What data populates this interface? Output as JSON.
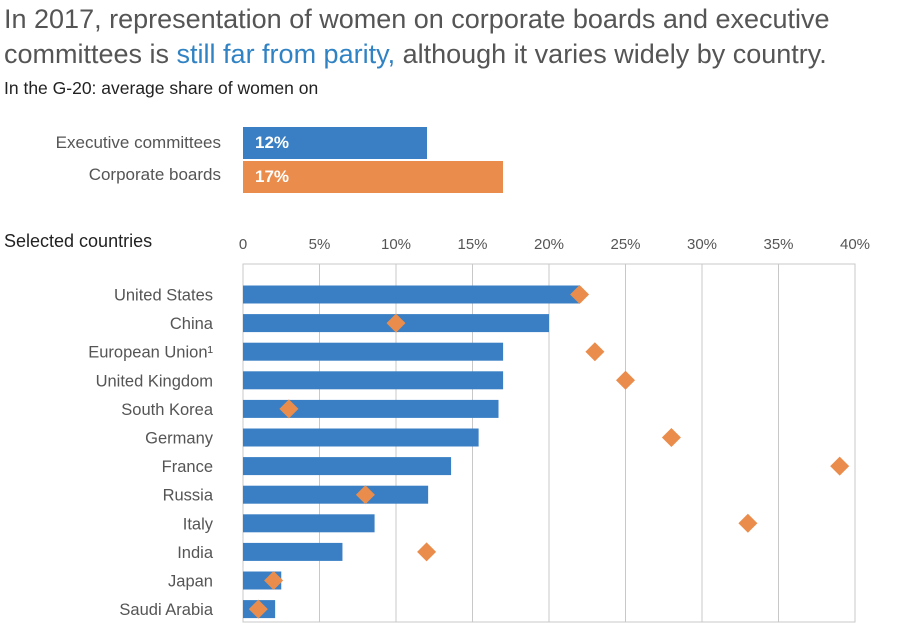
{
  "header": {
    "headline_pre": "In 2017, representation of women on corporate boards and executive committees is ",
    "headline_highlight": "still far from parity,",
    "headline_post": " although it varies widely by country.",
    "subtitle": "In the G-20: average share of women on"
  },
  "colors": {
    "exec": "#3a7fc4",
    "board": "#ea8d4c",
    "highlight": "#2f82c3",
    "grid": "#c8c8c8"
  },
  "summary": [
    {
      "label": "Executive committees",
      "value": 12,
      "value_label": "12%",
      "color": "#3a7fc4"
    },
    {
      "label": "Corporate boards",
      "value": 17,
      "value_label": "17%",
      "color": "#ea8d4c"
    }
  ],
  "section_label": "Selected countries",
  "chart_data": {
    "type": "bar",
    "orientation": "horizontal",
    "xlim": [
      0,
      40
    ],
    "xticks": [
      "0",
      "5%",
      "10%",
      "15%",
      "20%",
      "25%",
      "30%",
      "35%",
      "40%"
    ],
    "grid": true,
    "categories": [
      "United States",
      "China",
      "European Union¹",
      "United Kingdom",
      "South Korea",
      "Germany",
      "France",
      "Russia",
      "Italy",
      "India",
      "Japan",
      "Saudi Arabia"
    ],
    "series": [
      {
        "mark": "bar",
        "color": "#3a7fc4",
        "values": [
          22,
          20,
          17,
          17,
          16.7,
          15.4,
          13.6,
          12.1,
          8.6,
          6.5,
          2.5,
          2.1
        ]
      },
      {
        "mark": "diamond",
        "color": "#ea8d4c",
        "values": [
          22,
          10,
          23,
          25,
          3,
          28,
          39,
          8,
          33,
          12,
          2,
          1
        ]
      }
    ]
  }
}
